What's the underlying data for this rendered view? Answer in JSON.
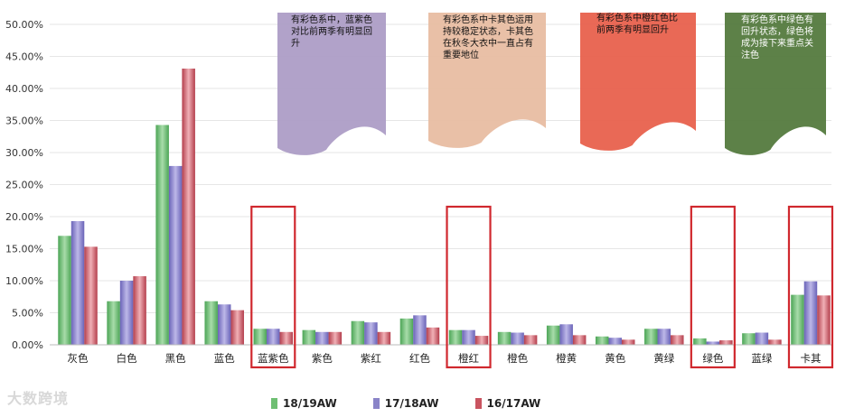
{
  "chart_data": {
    "type": "bar",
    "categories": [
      "灰色",
      "白色",
      "黑色",
      "蓝色",
      "蓝紫色",
      "紫色",
      "紫红",
      "红色",
      "橙红",
      "橙色",
      "橙黄",
      "黄色",
      "黄绿",
      "绿色",
      "蓝绿",
      "卡其"
    ],
    "series": [
      {
        "name": "18/19AW",
        "color": "#6fbf73",
        "values": [
          17.0,
          6.8,
          34.3,
          6.8,
          2.5,
          2.3,
          3.7,
          4.1,
          2.3,
          2.0,
          3.0,
          1.3,
          2.5,
          1.0,
          1.8,
          7.8
        ]
      },
      {
        "name": "17/18AW",
        "color": "#8a84c8",
        "values": [
          19.3,
          10.0,
          27.9,
          6.3,
          2.5,
          2.0,
          3.5,
          4.6,
          2.3,
          1.9,
          3.2,
          1.1,
          2.5,
          0.5,
          1.9,
          9.9
        ]
      },
      {
        "name": "16/17AW",
        "color": "#c95460",
        "values": [
          15.3,
          10.7,
          43.1,
          5.4,
          2.0,
          2.0,
          2.0,
          2.7,
          1.4,
          1.5,
          1.5,
          0.8,
          1.5,
          0.7,
          0.8,
          7.7
        ]
      }
    ],
    "ylim": [
      0,
      50
    ],
    "yticks": [
      "0.00%",
      "5.00%",
      "10.00%",
      "15.00%",
      "20.00%",
      "25.00%",
      "30.00%",
      "35.00%",
      "40.00%",
      "45.00%",
      "50.00%"
    ],
    "highlighted_categories": [
      "蓝紫色",
      "橙红",
      "绿色",
      "卡其"
    ],
    "grid": true,
    "legend_position": "bottom"
  },
  "annotations": [
    {
      "text": "有彩色系中，蓝紫色对比前两季有明显回升",
      "color": "#ad9dc6"
    },
    {
      "text": "有彩色系中卡其色运用持较稳定状态，卡其色在秋冬大衣中一直占有重要地位",
      "color": "#e8bda2"
    },
    {
      "text": "有彩色系中橙红色比前两季有明显回升",
      "color": "#e8614d"
    },
    {
      "text": "有彩色系中绿色有回升状态，绿色将成为接下来重点关注色",
      "color": "#547a3e"
    }
  ],
  "watermark": "大数跨境"
}
